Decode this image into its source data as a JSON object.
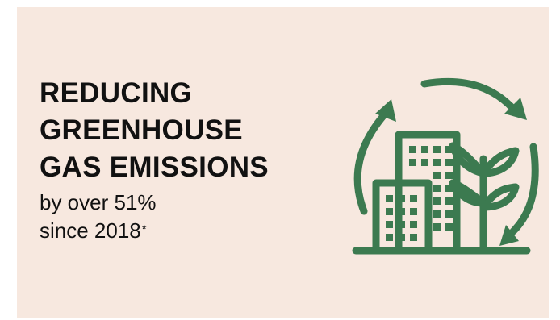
{
  "headline": {
    "line1": "REDUCING",
    "line2": "GREENHOUSE",
    "line3": "GAS EMISSIONS"
  },
  "subline": {
    "line1": "by over 51%",
    "line2": "since 2018",
    "footnote_mark": "*"
  },
  "colors": {
    "background": "#f7e8df",
    "text": "#111111",
    "icon": "#3c7a50"
  },
  "icon": {
    "name": "sustainable-buildings-recycle-icon"
  }
}
